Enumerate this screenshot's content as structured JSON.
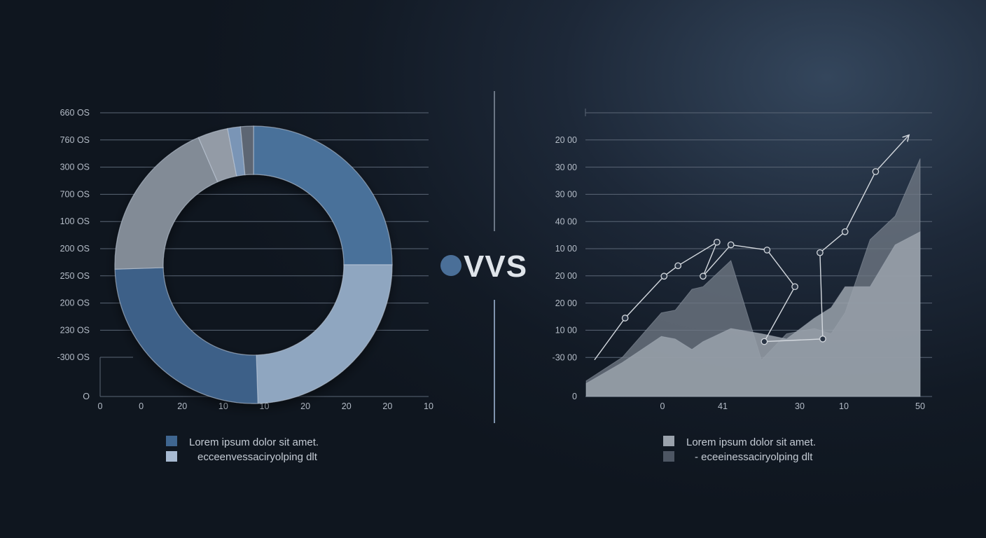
{
  "chart_data": [
    {
      "type": "pie",
      "variant": "donut",
      "y_tick_labels": [
        "660 OS",
        "760 OS",
        "300 OS",
        "700 OS",
        "100 OS",
        "200 OS",
        "250 OS",
        "200 OS",
        "230 OS",
        "-300 OS",
        "O"
      ],
      "x_tick_labels": [
        "0",
        "0",
        "20",
        "10",
        "10",
        "20",
        "20",
        "20",
        "10"
      ],
      "slices": [
        {
          "value": 25.0,
          "color": "#4a719a"
        },
        {
          "value": 24.5,
          "color": "#8fa6c0"
        },
        {
          "value": 25.0,
          "color": "#3d6088"
        },
        {
          "value": 19.0,
          "color": "#828b96"
        },
        {
          "value": 3.5,
          "color": "#939ba6"
        },
        {
          "value": 1.5,
          "color": "#7a95b6"
        },
        {
          "value": 1.5,
          "color": "#5d6673"
        }
      ],
      "legend": [
        {
          "label": "Lorem ipsum dolor sit amet.",
          "color": "#3f6690"
        },
        {
          "label": "ecceenvessaciryolping dlt",
          "color": "#a7bad1"
        }
      ],
      "grid": true,
      "legend_position": "bottom"
    },
    {
      "type": "area",
      "y_tick_labels": [
        "20 00",
        "30 00",
        "30 00",
        "40 00",
        "10 00",
        "20 00",
        "20 00",
        "10 00",
        "-30 00",
        "0"
      ],
      "x_tick_labels": [
        "0",
        "41",
        "30",
        "10",
        "50"
      ],
      "ylim": [
        0,
        10.5
      ],
      "xlim": [
        0,
        12
      ],
      "series": [
        {
          "role": "back-area",
          "color": "#6f7884",
          "points": [
            [
              0,
              0.6
            ],
            [
              1.3,
              1.5
            ],
            [
              2.7,
              3.2
            ],
            [
              3.2,
              3.3
            ],
            [
              3.8,
              4.1
            ],
            [
              4.2,
              4.2
            ],
            [
              5.2,
              5.2
            ],
            [
              6.3,
              1.4
            ],
            [
              7.2,
              2.4
            ],
            [
              8.2,
              2.6
            ],
            [
              8.8,
              2.4
            ],
            [
              9.3,
              3.2
            ],
            [
              10.2,
              6.0
            ],
            [
              11.1,
              6.9
            ],
            [
              12,
              9.1
            ]
          ]
        },
        {
          "role": "front-area",
          "color": "#9aa2ac",
          "points": [
            [
              0,
              0.5
            ],
            [
              1.3,
              1.3
            ],
            [
              2.7,
              2.3
            ],
            [
              3.2,
              2.2
            ],
            [
              3.8,
              1.8
            ],
            [
              4.2,
              2.1
            ],
            [
              5.2,
              2.6
            ],
            [
              6.3,
              2.4
            ],
            [
              7.2,
              2.2
            ],
            [
              8.2,
              3.0
            ],
            [
              8.8,
              3.4
            ],
            [
              9.3,
              4.2
            ],
            [
              10.2,
              4.2
            ],
            [
              11.1,
              5.8
            ],
            [
              12,
              6.3
            ]
          ]
        },
        {
          "role": "marker-line",
          "color": "#d3d8de",
          "points": [
            [
              0.3,
              1.4
            ],
            [
              1.4,
              3.0
            ],
            [
              2.8,
              4.6
            ],
            [
              3.3,
              5.0
            ],
            [
              4.7,
              5.9
            ],
            [
              4.2,
              4.6
            ],
            [
              5.2,
              5.8
            ],
            [
              6.5,
              5.6
            ],
            [
              7.5,
              4.2
            ],
            [
              6.4,
              2.1
            ],
            [
              8.5,
              2.2
            ],
            [
              8.4,
              5.5
            ],
            [
              9.3,
              6.3
            ],
            [
              10.4,
              8.6
            ],
            [
              11.6,
              10.0
            ]
          ]
        }
      ],
      "legend": [
        {
          "label": "Lorem ipsum dolor sit amet.",
          "color": "#9aa2ac"
        },
        {
          "label": "- eceeinessaciryolping dlt",
          "color": "#4d5663"
        }
      ],
      "grid": true,
      "legend_position": "bottom"
    }
  ],
  "divider": {
    "label": "VVS",
    "dot_color": "#4a6f98"
  }
}
